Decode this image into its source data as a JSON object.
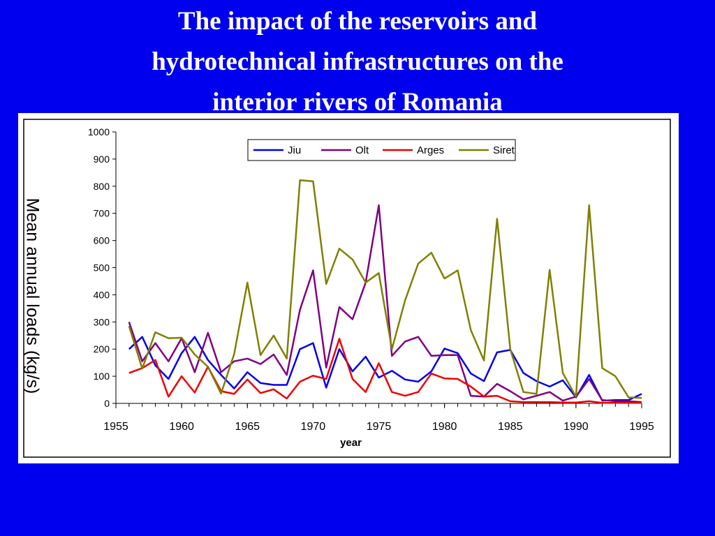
{
  "slide": {
    "title_lines": [
      "The impact of the reservoirs and",
      "hydrotechnical infrastructures on the",
      "interior rivers of Romania"
    ]
  },
  "chart_data": {
    "type": "line",
    "title": "The impact of the reservoirs and hydrotechnical infrastructures on the interior rivers of Romania",
    "xlabel": "year",
    "ylabel": "Mean annual loads (kg/s)",
    "xlim": [
      1955,
      1995
    ],
    "ylim": [
      0,
      1000
    ],
    "xticks": [
      1955,
      1960,
      1965,
      1970,
      1975,
      1980,
      1985,
      1990,
      1995
    ],
    "yticks": [
      0,
      100,
      200,
      300,
      400,
      500,
      600,
      700,
      800,
      900,
      1000
    ],
    "grid": false,
    "legend": "top-center",
    "x": [
      1956,
      1957,
      1958,
      1959,
      1960,
      1961,
      1962,
      1963,
      1964,
      1965,
      1966,
      1967,
      1968,
      1969,
      1970,
      1971,
      1972,
      1973,
      1974,
      1975,
      1976,
      1977,
      1978,
      1979,
      1980,
      1981,
      1982,
      1983,
      1984,
      1985,
      1986,
      1987,
      1988,
      1989,
      1990,
      1991,
      1992,
      1993,
      1994,
      1995
    ],
    "series": [
      {
        "name": "Jiu",
        "color": "#0000ee",
        "values": [
          200,
          245,
          140,
          90,
          185,
          245,
          160,
          105,
          55,
          115,
          75,
          68,
          68,
          200,
          222,
          58,
          200,
          118,
          172,
          95,
          120,
          88,
          80,
          118,
          202,
          185,
          110,
          82,
          188,
          197,
          112,
          82,
          62,
          85,
          22,
          105,
          10,
          12,
          12,
          35
        ]
      },
      {
        "name": "Olt",
        "color": "#800080",
        "values": [
          300,
          155,
          222,
          155,
          240,
          115,
          260,
          115,
          155,
          165,
          145,
          180,
          105,
          345,
          490,
          132,
          355,
          310,
          445,
          730,
          175,
          228,
          245,
          175,
          178,
          178,
          28,
          25,
          72,
          45,
          15,
          28,
          42,
          10,
          25,
          90,
          12,
          8,
          8,
          5
        ]
      },
      {
        "name": "Arges",
        "color": "#ee0000",
        "values": [
          112,
          130,
          160,
          25,
          100,
          40,
          135,
          45,
          35,
          88,
          38,
          52,
          18,
          80,
          102,
          90,
          238,
          90,
          42,
          148,
          42,
          28,
          42,
          110,
          92,
          90,
          62,
          25,
          28,
          8,
          5,
          5,
          5,
          3,
          3,
          8,
          2,
          2,
          2,
          2
        ]
      },
      {
        "name": "Siret",
        "color": "#808000",
        "values": [
          285,
          128,
          262,
          240,
          242,
          180,
          135,
          36,
          182,
          445,
          178,
          250,
          165,
          822,
          818,
          440,
          570,
          530,
          445,
          480,
          200,
          380,
          515,
          555,
          460,
          490,
          270,
          158,
          680,
          200,
          42,
          35,
          492,
          112,
          25,
          730,
          130,
          100,
          22,
          20
        ]
      }
    ]
  }
}
